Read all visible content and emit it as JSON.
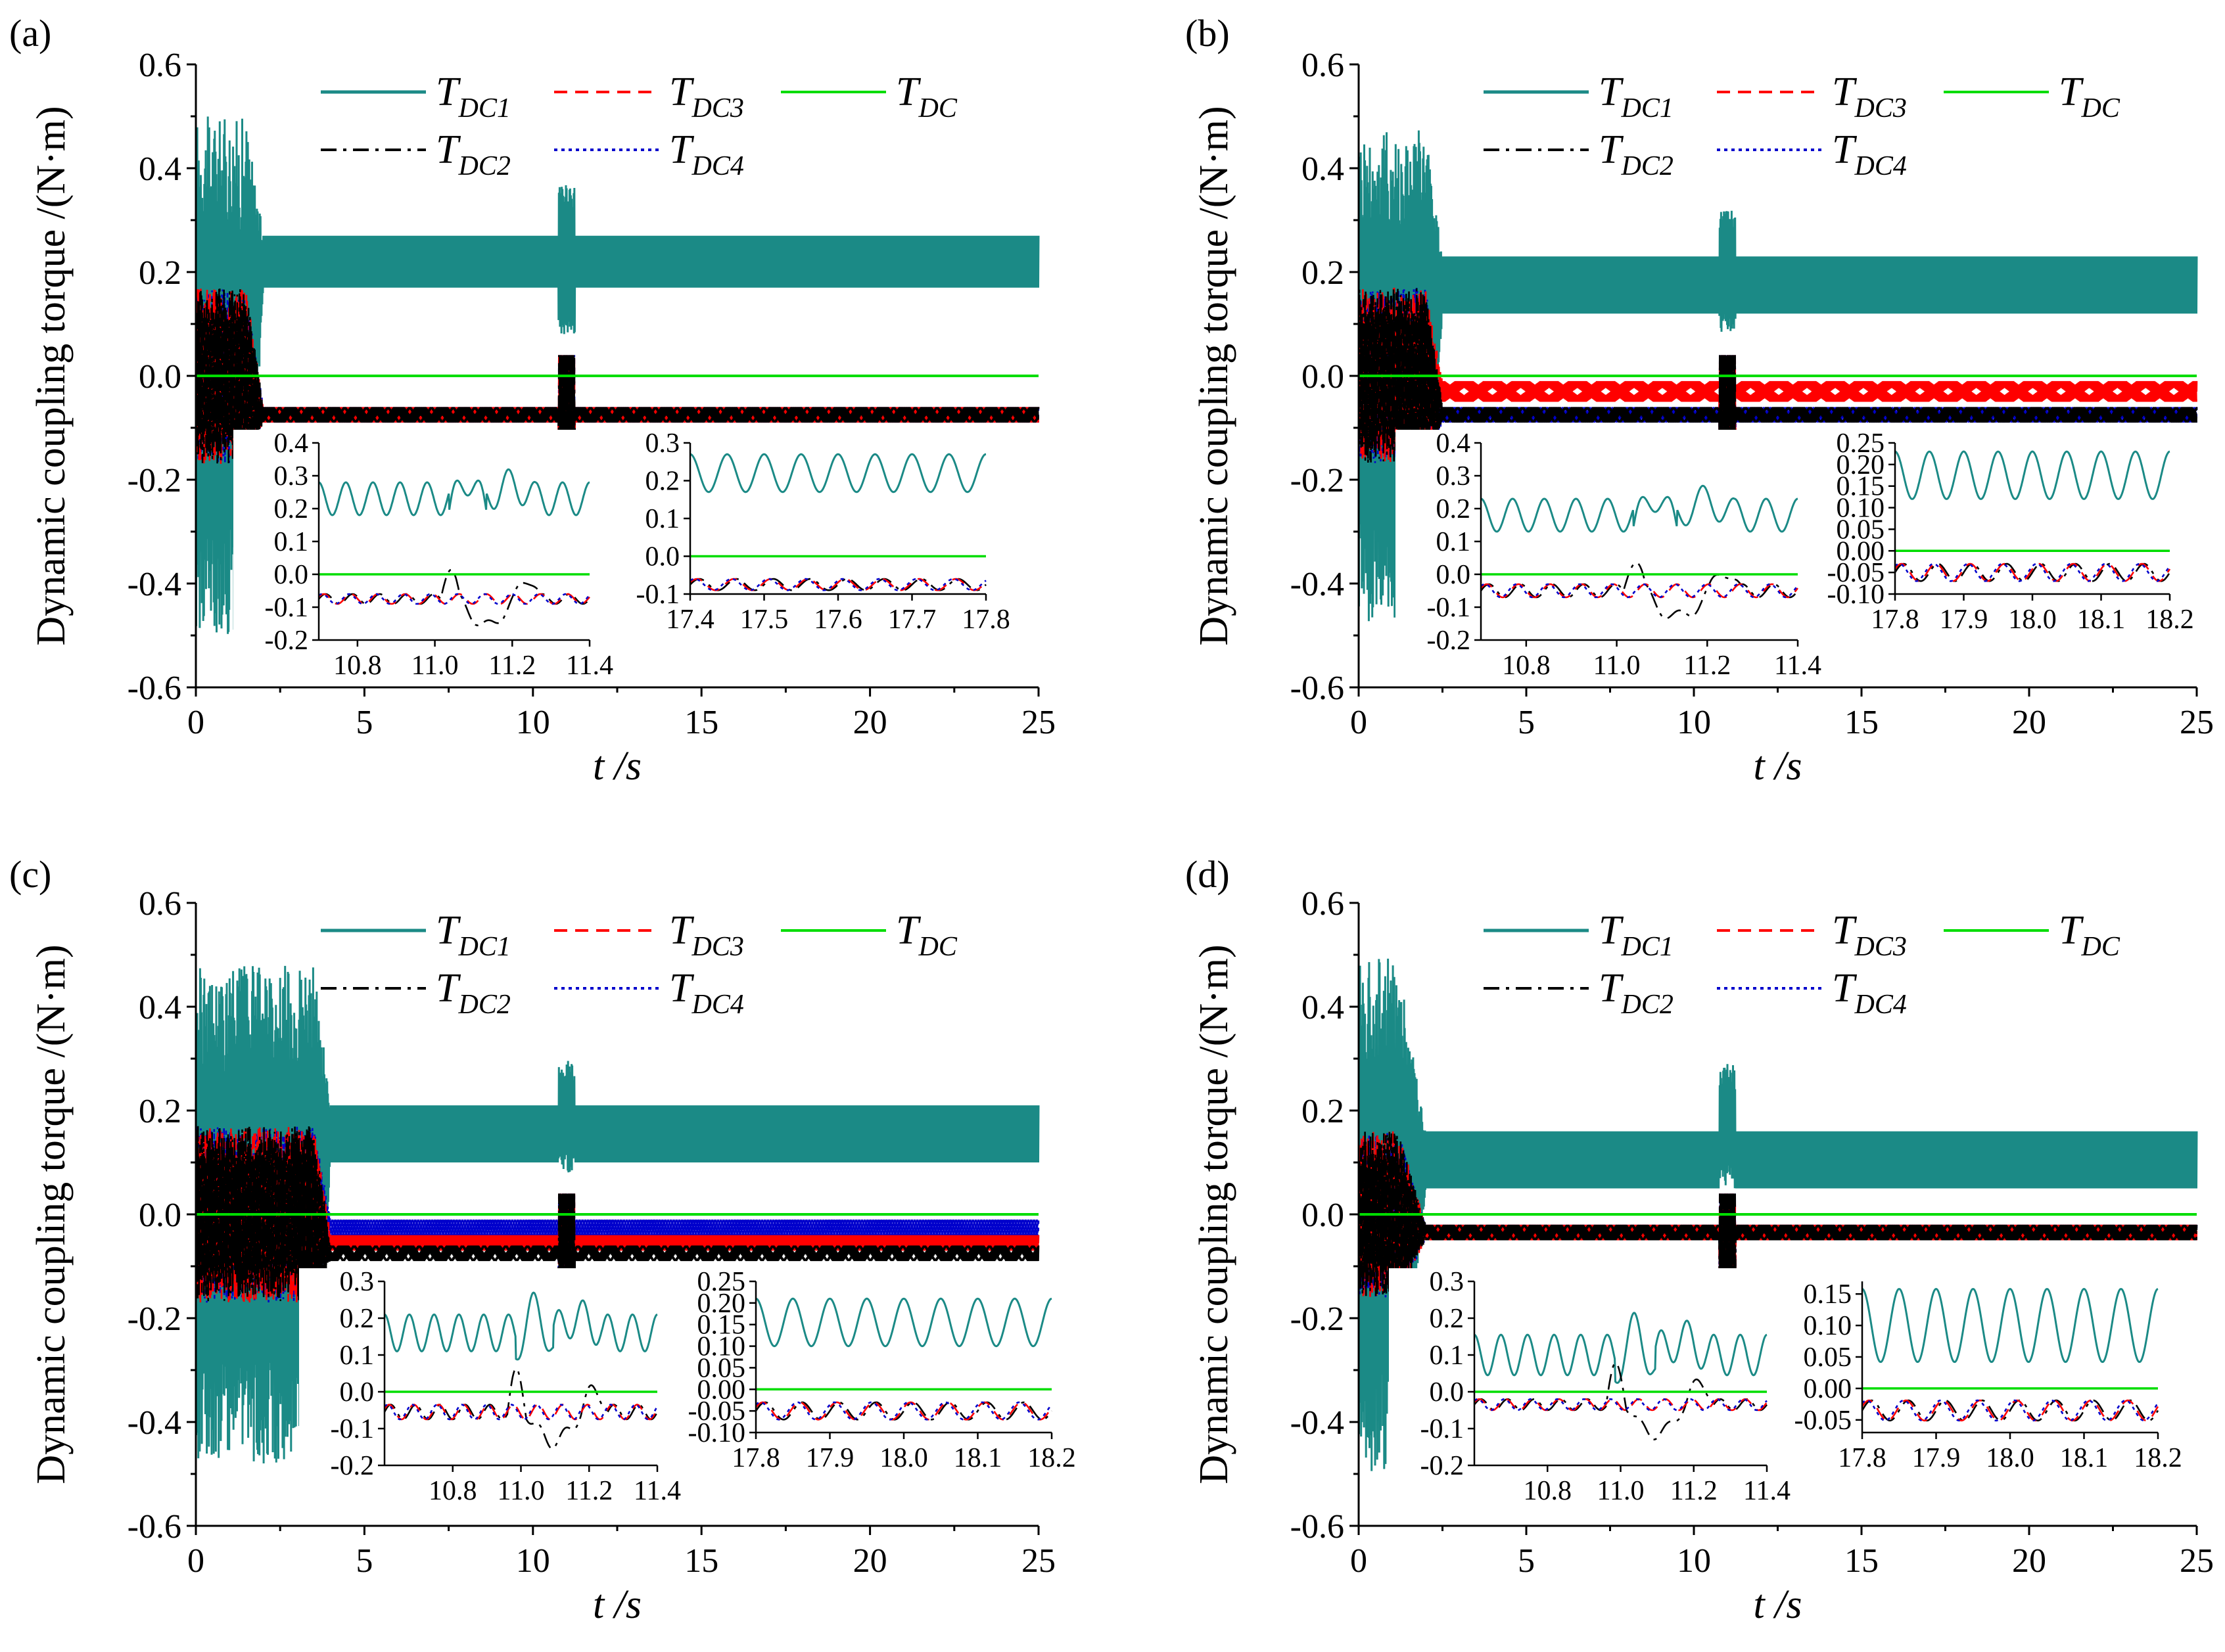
{
  "figure": {
    "colors": {
      "T_DC1": "#1b8a86",
      "T_DC2": "#000000",
      "T_DC3": "#ff0000",
      "T_DC4": "#0000cc",
      "T_DC": "#00dd00"
    },
    "legend": {
      "entries": [
        {
          "key": "T_DC1",
          "main": "T",
          "sub": "DC1",
          "style": "solid"
        },
        {
          "key": "T_DC3",
          "main": "T",
          "sub": "DC3",
          "style": "dashed"
        },
        {
          "key": "T_DC",
          "main": "T",
          "sub": "DC",
          "style": "solid"
        },
        {
          "key": "T_DC2",
          "main": "T",
          "sub": "DC2",
          "style": "dashdot"
        },
        {
          "key": "T_DC4",
          "main": "T",
          "sub": "DC4",
          "style": "dotted"
        }
      ]
    }
  },
  "chart_data": [
    {
      "panel": "(a)",
      "type": "line",
      "xlabel": "t /s",
      "ylabel": "Dynamic coupling torque /(N·m)",
      "xlim": [
        0,
        25
      ],
      "ylim": [
        -0.6,
        0.6
      ],
      "xticks": [
        0,
        5,
        10,
        15,
        20,
        25
      ],
      "yticks": [
        "-0.6",
        "-0.4",
        "-0.2",
        "0.0",
        "0.2",
        "0.4",
        "0.6"
      ],
      "transient": {
        "start_end": 1.5,
        "start_amp_dc1": 0.5,
        "start_amp_rest": 0.17,
        "event_t": 11.0,
        "event_max": 0.37,
        "event_min": 0.08,
        "settle_t": 2.0
      },
      "series": [
        {
          "key": "T_DC1",
          "steady_min": 0.17,
          "steady_max": 0.27
        },
        {
          "key": "T_DC2",
          "steady_min": -0.09,
          "steady_max": -0.06
        },
        {
          "key": "T_DC3",
          "steady_min": -0.09,
          "steady_max": -0.06
        },
        {
          "key": "T_DC4",
          "steady_min": -0.09,
          "steady_max": -0.06
        },
        {
          "key": "T_DC",
          "steady_min": 0.0,
          "steady_max": 0.0
        }
      ],
      "insets": [
        {
          "xlim": [
            10.7,
            11.4
          ],
          "ylim": [
            -0.2,
            0.4
          ],
          "xticks": [
            "10.8",
            "11.0",
            "11.2",
            "11.4"
          ],
          "yticks": [
            "-0.2",
            "-0.1",
            "0.0",
            "0.1",
            "0.2",
            "0.3",
            "0.4"
          ],
          "dc1": {
            "mid": 0.23,
            "amp": 0.05,
            "cycles": 10
          },
          "others": {
            "mid": -0.075,
            "amp": 0.015,
            "cycles": 10
          },
          "has_event": true
        },
        {
          "xlim": [
            17.4,
            17.8
          ],
          "ylim": [
            -0.1,
            0.3
          ],
          "xticks": [
            "17.4",
            "17.5",
            "17.6",
            "17.7",
            "17.8"
          ],
          "yticks": [
            "-0.1",
            "0.0",
            "0.1",
            "0.2",
            "0.3"
          ],
          "dc1": {
            "mid": 0.22,
            "amp": 0.05,
            "cycles": 8
          },
          "others": {
            "mid": -0.075,
            "amp": 0.015,
            "cycles": 8
          },
          "has_event": false
        }
      ]
    },
    {
      "panel": "(b)",
      "type": "line",
      "xlabel": "t /s",
      "ylabel": "Dynamic coupling torque /(N·m)",
      "xlim": [
        0,
        25
      ],
      "ylim": [
        -0.6,
        0.6
      ],
      "xticks": [
        0,
        5,
        10,
        15,
        20,
        25
      ],
      "yticks": [
        "-0.6",
        "-0.4",
        "-0.2",
        "0.0",
        "0.2",
        "0.4",
        "0.6"
      ],
      "transient": {
        "start_end": 2.0,
        "start_amp_dc1": 0.48,
        "start_amp_rest": 0.17,
        "event_t": 11.0,
        "event_max": 0.32,
        "event_min": 0.08,
        "settle_t": 2.5
      },
      "series": [
        {
          "key": "T_DC1",
          "steady_min": 0.12,
          "steady_max": 0.23
        },
        {
          "key": "T_DC2",
          "steady_min": -0.09,
          "steady_max": -0.06
        },
        {
          "key": "T_DC3",
          "steady_min": -0.05,
          "steady_max": -0.01
        },
        {
          "key": "T_DC4",
          "steady_min": -0.09,
          "steady_max": -0.06
        },
        {
          "key": "T_DC",
          "steady_min": 0.0,
          "steady_max": 0.0
        }
      ],
      "insets": [
        {
          "xlim": [
            10.7,
            11.4
          ],
          "ylim": [
            -0.2,
            0.4
          ],
          "xticks": [
            "10.8",
            "11.0",
            "11.2",
            "11.4"
          ],
          "yticks": [
            "-0.2",
            "-0.1",
            "0.0",
            "0.1",
            "0.2",
            "0.3",
            "0.4"
          ],
          "dc1": {
            "mid": 0.18,
            "amp": 0.05,
            "cycles": 10
          },
          "others": {
            "mid": -0.05,
            "amp": 0.02,
            "cycles": 10
          },
          "has_event": true
        },
        {
          "xlim": [
            17.8,
            18.2
          ],
          "ylim": [
            -0.1,
            0.25
          ],
          "xticks": [
            "17.8",
            "17.9",
            "18.0",
            "18.1",
            "18.2"
          ],
          "yticks": [
            "-0.10",
            "-0.05",
            "0.00",
            "0.05",
            "0.10",
            "0.15",
            "0.20",
            "0.25"
          ],
          "dc1": {
            "mid": 0.175,
            "amp": 0.055,
            "cycles": 8
          },
          "others": {
            "mid": -0.05,
            "amp": 0.02,
            "cycles": 8
          },
          "has_event": false
        }
      ]
    },
    {
      "panel": "(c)",
      "type": "line",
      "xlabel": "t /s",
      "ylabel": "Dynamic coupling torque /(N·m)",
      "xlim": [
        0,
        25
      ],
      "ylim": [
        -0.6,
        0.6
      ],
      "xticks": [
        0,
        5,
        10,
        15,
        20,
        25
      ],
      "yticks": [
        "-0.6",
        "-0.4",
        "-0.2",
        "0.0",
        "0.2",
        "0.4",
        "0.6"
      ],
      "transient": {
        "start_end": 3.5,
        "start_amp_dc1": 0.48,
        "start_amp_rest": 0.17,
        "event_t": 11.0,
        "event_max": 0.3,
        "event_min": 0.08,
        "settle_t": 4.0
      },
      "series": [
        {
          "key": "T_DC1",
          "steady_min": 0.1,
          "steady_max": 0.21
        },
        {
          "key": "T_DC2",
          "steady_min": -0.09,
          "steady_max": -0.06
        },
        {
          "key": "T_DC3",
          "steady_min": -0.07,
          "steady_max": -0.04
        },
        {
          "key": "T_DC4",
          "steady_min": -0.05,
          "steady_max": -0.01
        },
        {
          "key": "T_DC",
          "steady_min": 0.0,
          "steady_max": 0.0
        }
      ],
      "insets": [
        {
          "xlim": [
            10.6,
            11.4
          ],
          "ylim": [
            -0.2,
            0.3
          ],
          "xticks": [
            "10.8",
            "11.0",
            "11.2",
            "11.4"
          ],
          "yticks": [
            "-0.2",
            "-0.1",
            "0.0",
            "0.1",
            "0.2",
            "0.3"
          ],
          "dc1": {
            "mid": 0.16,
            "amp": 0.05,
            "cycles": 11
          },
          "others": {
            "mid": -0.055,
            "amp": 0.02,
            "cycles": 11
          },
          "has_event": true
        },
        {
          "xlim": [
            17.8,
            18.2
          ],
          "ylim": [
            -0.1,
            0.25
          ],
          "xticks": [
            "17.8",
            "17.9",
            "18.0",
            "18.1",
            "18.2"
          ],
          "yticks": [
            "-0.10",
            "-0.05",
            "0.00",
            "0.05",
            "0.10",
            "0.15",
            "0.20",
            "0.25"
          ],
          "dc1": {
            "mid": 0.155,
            "amp": 0.055,
            "cycles": 8
          },
          "others": {
            "mid": -0.05,
            "amp": 0.02,
            "cycles": 8
          },
          "has_event": false
        }
      ]
    },
    {
      "panel": "(d)",
      "type": "line",
      "xlabel": "t /s",
      "ylabel": "Dynamic coupling torque /(N·m)",
      "xlim": [
        0,
        25
      ],
      "ylim": [
        -0.6,
        0.6
      ],
      "xticks": [
        0,
        5,
        10,
        15,
        20,
        25
      ],
      "yticks": [
        "-0.6",
        "-0.4",
        "-0.2",
        "0.0",
        "0.2",
        "0.4",
        "0.6"
      ],
      "transient": {
        "start_end": 1.2,
        "start_amp_dc1": 0.5,
        "start_amp_rest": 0.16,
        "event_t": 11.0,
        "event_max": 0.29,
        "event_min": 0.05,
        "settle_t": 2.0
      },
      "series": [
        {
          "key": "T_DC1",
          "steady_min": 0.05,
          "steady_max": 0.16
        },
        {
          "key": "T_DC2",
          "steady_min": -0.05,
          "steady_max": -0.02
        },
        {
          "key": "T_DC3",
          "steady_min": -0.05,
          "steady_max": -0.02
        },
        {
          "key": "T_DC4",
          "steady_min": -0.05,
          "steady_max": -0.02
        },
        {
          "key": "T_DC",
          "steady_min": 0.0,
          "steady_max": 0.0
        }
      ],
      "insets": [
        {
          "xlim": [
            10.6,
            11.4
          ],
          "ylim": [
            -0.2,
            0.3
          ],
          "xticks": [
            "10.8",
            "11.0",
            "11.2",
            "11.4"
          ],
          "yticks": [
            "-0.2",
            "-0.1",
            "0.0",
            "0.1",
            "0.2",
            "0.3"
          ],
          "dc1": {
            "mid": 0.1,
            "amp": 0.055,
            "cycles": 11
          },
          "others": {
            "mid": -0.035,
            "amp": 0.015,
            "cycles": 11
          },
          "has_event": true
        },
        {
          "xlim": [
            17.8,
            18.2
          ],
          "ylim": [
            -0.07,
            0.17
          ],
          "xticks": [
            "17.8",
            "17.9",
            "18.0",
            "18.1",
            "18.2"
          ],
          "yticks": [
            "-0.05",
            "0.00",
            "0.05",
            "0.10",
            "0.15"
          ],
          "dc1": {
            "mid": 0.1,
            "amp": 0.058,
            "cycles": 8
          },
          "others": {
            "mid": -0.035,
            "amp": 0.016,
            "cycles": 8
          },
          "has_event": false
        }
      ]
    }
  ]
}
